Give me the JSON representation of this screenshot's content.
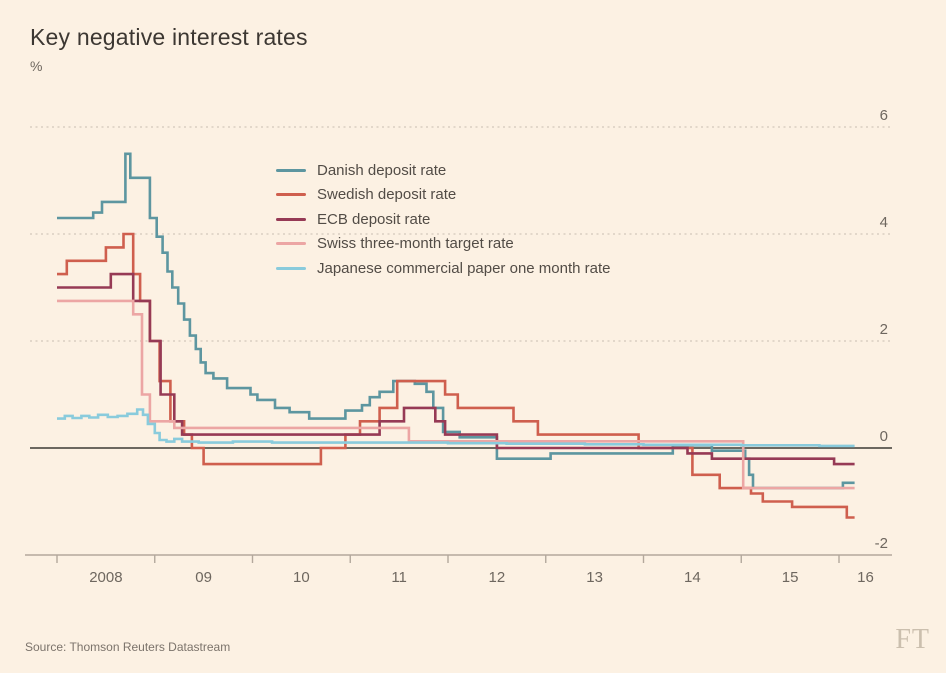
{
  "page": {
    "background_color": "#fcf1e3"
  },
  "header": {
    "title": "Key negative interest rates",
    "unit": "%"
  },
  "chart_data": {
    "type": "line",
    "step": true,
    "title": "Key negative interest rates",
    "ylabel": "%",
    "xlabel": "",
    "grid": "dotted-horizontal",
    "legend_position": "top-center-inside",
    "y_ticks": [
      6,
      4,
      2,
      0,
      -2
    ],
    "grid_values": [
      6,
      4,
      2
    ],
    "zero_line_value": 0,
    "ylim": [
      -2,
      6
    ],
    "x_tick_years": [
      2008,
      2009,
      2010,
      2011,
      2012,
      2013,
      2014,
      2015,
      2016
    ],
    "x_tick_labels": [
      "2008",
      "09",
      "10",
      "11",
      "12",
      "13",
      "14",
      "15",
      "16"
    ],
    "x_end": 2016.16,
    "axis_color": "#b3a89c",
    "grid_color": "#d2c8bb",
    "zero_line_color": "#3d3a35",
    "label_color": "#6e675f",
    "series": [
      {
        "name": "Danish deposit rate",
        "color": "#5d96a0",
        "points": [
          [
            2008.0,
            4.3
          ],
          [
            2008.37,
            4.4
          ],
          [
            2008.46,
            4.6
          ],
          [
            2008.7,
            5.5
          ],
          [
            2008.75,
            5.05
          ],
          [
            2008.95,
            4.3
          ],
          [
            2009.02,
            3.95
          ],
          [
            2009.08,
            3.65
          ],
          [
            2009.13,
            3.3
          ],
          [
            2009.18,
            3.0
          ],
          [
            2009.24,
            2.7
          ],
          [
            2009.3,
            2.4
          ],
          [
            2009.36,
            2.1
          ],
          [
            2009.42,
            1.85
          ],
          [
            2009.47,
            1.6
          ],
          [
            2009.52,
            1.4
          ],
          [
            2009.6,
            1.3
          ],
          [
            2009.74,
            1.12
          ],
          [
            2009.98,
            1.0
          ],
          [
            2010.05,
            0.9
          ],
          [
            2010.23,
            0.75
          ],
          [
            2010.38,
            0.67
          ],
          [
            2010.58,
            0.55
          ],
          [
            2010.95,
            0.7
          ],
          [
            2011.12,
            0.8
          ],
          [
            2011.2,
            0.95
          ],
          [
            2011.3,
            1.05
          ],
          [
            2011.44,
            1.25
          ],
          [
            2011.66,
            1.2
          ],
          [
            2011.78,
            1.05
          ],
          [
            2011.85,
            0.75
          ],
          [
            2011.95,
            0.3
          ],
          [
            2012.12,
            0.2
          ],
          [
            2012.5,
            -0.2
          ],
          [
            2013.05,
            -0.1
          ],
          [
            2014.3,
            0.05
          ],
          [
            2014.7,
            -0.05
          ],
          [
            2015.04,
            -0.2
          ],
          [
            2015.08,
            -0.5
          ],
          [
            2015.12,
            -0.75
          ],
          [
            2016.04,
            -0.65
          ]
        ]
      },
      {
        "name": "Swedish deposit rate",
        "color": "#cf5f4e",
        "points": [
          [
            2008.0,
            3.25
          ],
          [
            2008.1,
            3.5
          ],
          [
            2008.5,
            3.75
          ],
          [
            2008.68,
            4.0
          ],
          [
            2008.78,
            3.25
          ],
          [
            2008.85,
            2.75
          ],
          [
            2008.95,
            2.0
          ],
          [
            2009.05,
            1.25
          ],
          [
            2009.16,
            0.5
          ],
          [
            2009.3,
            0.25
          ],
          [
            2009.38,
            0.0
          ],
          [
            2009.5,
            -0.3
          ],
          [
            2010.7,
            0.0
          ],
          [
            2010.95,
            0.25
          ],
          [
            2011.1,
            0.5
          ],
          [
            2011.3,
            0.75
          ],
          [
            2011.48,
            1.25
          ],
          [
            2011.97,
            1.0
          ],
          [
            2012.1,
            0.75
          ],
          [
            2012.67,
            0.5
          ],
          [
            2012.92,
            0.25
          ],
          [
            2013.95,
            0.0
          ],
          [
            2014.5,
            -0.5
          ],
          [
            2014.78,
            -0.75
          ],
          [
            2015.1,
            -0.85
          ],
          [
            2015.22,
            -1.0
          ],
          [
            2015.52,
            -1.1
          ],
          [
            2016.08,
            -1.3
          ]
        ]
      },
      {
        "name": "ECB deposit rate",
        "color": "#963a55",
        "points": [
          [
            2008.0,
            3.0
          ],
          [
            2008.55,
            3.25
          ],
          [
            2008.78,
            2.75
          ],
          [
            2008.95,
            2.0
          ],
          [
            2009.06,
            1.0
          ],
          [
            2009.2,
            0.5
          ],
          [
            2009.28,
            0.25
          ],
          [
            2011.3,
            0.5
          ],
          [
            2011.55,
            0.75
          ],
          [
            2011.87,
            0.5
          ],
          [
            2011.97,
            0.25
          ],
          [
            2012.5,
            0.0
          ],
          [
            2014.45,
            -0.1
          ],
          [
            2014.7,
            -0.2
          ],
          [
            2015.95,
            -0.3
          ]
        ]
      },
      {
        "name": "Swiss three-month target rate",
        "color": "#eca6a4",
        "points": [
          [
            2008.0,
            2.75
          ],
          [
            2008.78,
            2.5
          ],
          [
            2008.87,
            1.0
          ],
          [
            2008.95,
            0.5
          ],
          [
            2009.2,
            0.375
          ],
          [
            2011.6,
            0.125
          ],
          [
            2015.02,
            -0.75
          ]
        ]
      },
      {
        "name": "Japanese commercial paper one month rate",
        "color": "#89cbdc",
        "points": [
          [
            2008.0,
            0.55
          ],
          [
            2008.08,
            0.6
          ],
          [
            2008.16,
            0.56
          ],
          [
            2008.25,
            0.6
          ],
          [
            2008.33,
            0.57
          ],
          [
            2008.42,
            0.62
          ],
          [
            2008.52,
            0.58
          ],
          [
            2008.62,
            0.6
          ],
          [
            2008.72,
            0.64
          ],
          [
            2008.82,
            0.72
          ],
          [
            2008.88,
            0.62
          ],
          [
            2008.93,
            0.45
          ],
          [
            2009.0,
            0.28
          ],
          [
            2009.05,
            0.15
          ],
          [
            2009.12,
            0.12
          ],
          [
            2009.2,
            0.17
          ],
          [
            2009.28,
            0.12
          ],
          [
            2009.45,
            0.1
          ],
          [
            2009.8,
            0.12
          ],
          [
            2010.2,
            0.1
          ],
          [
            2011.0,
            0.1
          ],
          [
            2012.0,
            0.09
          ],
          [
            2012.6,
            0.08
          ],
          [
            2013.4,
            0.07
          ],
          [
            2014.0,
            0.06
          ],
          [
            2015.0,
            0.05
          ],
          [
            2015.8,
            0.04
          ]
        ]
      }
    ]
  },
  "footer": {
    "source": "Source: Thomson Reuters Datastream",
    "brand": "FT"
  }
}
